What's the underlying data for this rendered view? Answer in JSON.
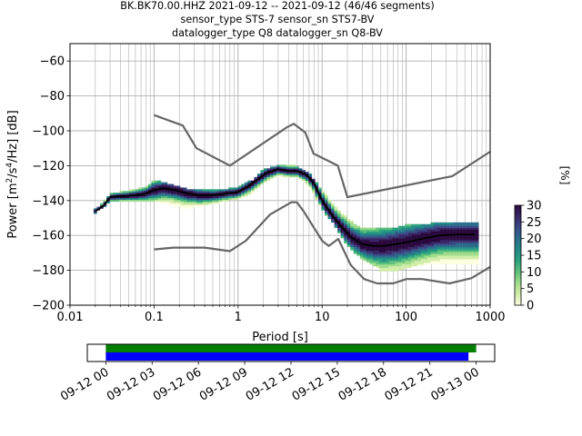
{
  "figure": {
    "title_lines": [
      "BK.BK70.00.HHZ   2021-09-12 -- 2021-09-12  (46/46 segments)",
      "sensor_type STS-7 sensor_sn STS7-BV",
      "datalogger_type Q8 datalogger_sn Q8-BV"
    ]
  },
  "chart_data": [
    {
      "type": "heatmap",
      "title": "BK.BK70.00.HHZ   2021-09-12 -- 2021-09-12  (46/46 segments)",
      "xlabel": "Period [s]",
      "ylabel": "Power [m²/s⁴/Hz] [dB]",
      "xscale": "log",
      "xlim": [
        0.01,
        1000
      ],
      "ylim": [
        -200,
        -50
      ],
      "grid": true,
      "x_ticks": [
        0.01,
        0.1,
        1,
        10,
        100,
        1000
      ],
      "x_tick_labels": [
        "0.01",
        "0.1",
        "1",
        "10",
        "100",
        "1000"
      ],
      "y_ticks": [
        -200,
        -180,
        -160,
        -140,
        -120,
        -100,
        -80,
        -60
      ],
      "y_tick_labels": [
        "−200",
        "−180",
        "−160",
        "−140",
        "−120",
        "−100",
        "−80",
        "−60"
      ],
      "colorbar": {
        "label": "[%]",
        "range": [
          0,
          30
        ],
        "ticks": [
          0,
          5,
          10,
          15,
          20,
          25,
          30
        ],
        "colors": [
          "#fdfde0",
          "#d2ecaa",
          "#a0dc8c",
          "#5fc07d",
          "#2da37d",
          "#238a87",
          "#2b6c8a",
          "#3a4a86",
          "#3a2665",
          "#2a0a3e"
        ]
      },
      "series": [
        {
          "name": "mean",
          "color": "#000000",
          "x": [
            0.02,
            0.025,
            0.03,
            0.04,
            0.06,
            0.08,
            0.1,
            0.13,
            0.18,
            0.25,
            0.35,
            0.5,
            0.7,
            1.0,
            1.3,
            1.7,
            2.2,
            3.0,
            4.0,
            5.0,
            6.5,
            8.0,
            10.0,
            13.0,
            17.0,
            22.0,
            30.0,
            40.0,
            55.0,
            75.0,
            100.0,
            150.0,
            250.0,
            400.0,
            650.0
          ],
          "y": [
            -146,
            -143,
            -138,
            -137.5,
            -137,
            -136,
            -134,
            -133,
            -134,
            -136,
            -137,
            -137,
            -136,
            -135,
            -132,
            -128,
            -124,
            -122,
            -123,
            -123,
            -125,
            -130,
            -140,
            -148,
            -155,
            -161,
            -165,
            -166,
            -166,
            -165,
            -164,
            -162,
            -160,
            -159.5,
            -159.5
          ]
        },
        {
          "name": "upper noise model",
          "color": "#666666",
          "x": [
            0.1,
            0.22,
            0.32,
            0.8,
            3.8,
            4.6,
            6.3,
            7.9,
            15.4,
            20.0,
            354.8,
            1000.0
          ],
          "y": [
            -91,
            -97,
            -110,
            -120,
            -98,
            -96,
            -101,
            -113,
            -120,
            -138,
            -126,
            -112
          ]
        },
        {
          "name": "lower noise model",
          "color": "#666666",
          "x": [
            0.1,
            0.17,
            0.4,
            0.8,
            1.24,
            2.4,
            4.3,
            5.0,
            6.0,
            10.0,
            12.0,
            15.6,
            21.9,
            31.6,
            45.0,
            70.0,
            101.0,
            154.0,
            328.0,
            600.0,
            1000.0
          ],
          "y": [
            -168,
            -167,
            -167,
            -169,
            -163,
            -148,
            -141,
            -141,
            -146,
            -163,
            -166,
            -162,
            -177,
            -185,
            -187.5,
            -187.5,
            -185,
            -185,
            -187.5,
            -184.5,
            -178
          ]
        }
      ],
      "distribution_ranges": {
        "x": [
          0.02,
          0.03,
          0.05,
          0.08,
          0.1,
          0.15,
          0.2,
          0.3,
          0.5,
          0.8,
          1.0,
          1.5,
          2.0,
          3.0,
          5.0,
          7.0,
          10.0,
          15.0,
          20.0,
          30.0,
          50.0,
          80.0,
          100.0,
          200.0,
          400.0,
          650.0
        ],
        "low": [
          -147,
          -141,
          -140,
          -140,
          -140,
          -142,
          -144,
          -144,
          -142,
          -140,
          -139,
          -136,
          -130,
          -126,
          -126,
          -132,
          -145,
          -156,
          -166,
          -174,
          -180,
          -180,
          -179,
          -176,
          -176,
          -176
        ],
        "high": [
          -145,
          -136,
          -134,
          -132,
          -128,
          -130,
          -132,
          -134,
          -134,
          -133,
          -132,
          -128,
          -122,
          -120,
          -120,
          -124,
          -134,
          -144,
          -150,
          -156,
          -156,
          -155,
          -154,
          -153,
          -153,
          -153
        ]
      }
    },
    {
      "type": "bar",
      "title": "",
      "xlabel": "",
      "ylabel": "",
      "x_tick_labels": [
        "09-12 00",
        "09-12 03",
        "09-12 06",
        "09-12 09",
        "09-12 12",
        "09-12 15",
        "09-12 18",
        "09-12 21",
        "09-13 00"
      ],
      "xlim_hours": [
        -1.2,
        25.2
      ],
      "series": [
        {
          "name": "",
          "color": "#008000",
          "start_hour": 0.0,
          "end_hour": 24.0
        },
        {
          "name": "",
          "color": "#0000ff",
          "start_hour": 0.0,
          "end_hour": 23.5
        }
      ]
    }
  ]
}
